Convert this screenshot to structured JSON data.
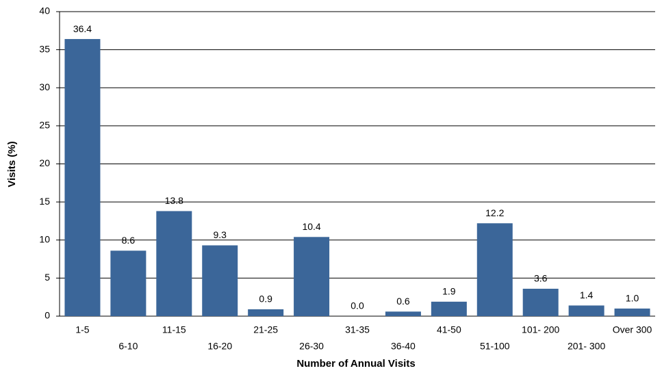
{
  "chart_data": {
    "type": "bar",
    "x_label": "Number of Annual Visits",
    "y_label": "Visits (%)",
    "categories": [
      "1-5",
      "6-10",
      "11-15",
      "16-20",
      "21-25",
      "26-30",
      "31-35",
      "36-40",
      "41-50",
      "51-100",
      "101- 200",
      "201- 300",
      "Over 300"
    ],
    "values": [
      36.4,
      8.6,
      13.8,
      9.3,
      0.9,
      10.4,
      0,
      0.6,
      1.9,
      12.2,
      3.6,
      1.4,
      1
    ],
    "value_labels": [
      "36.4",
      "8.6",
      "13.8",
      "9.3",
      "0.9",
      "10.4",
      "0.0",
      "0.6",
      "1.9",
      "12.2",
      "3.6",
      "1.4",
      "1.0"
    ],
    "color": "#3b6699",
    "ylim": [
      0,
      40
    ],
    "yticks": [
      0,
      5,
      10,
      15,
      20,
      25,
      30,
      35,
      40
    ],
    "grid": true
  }
}
